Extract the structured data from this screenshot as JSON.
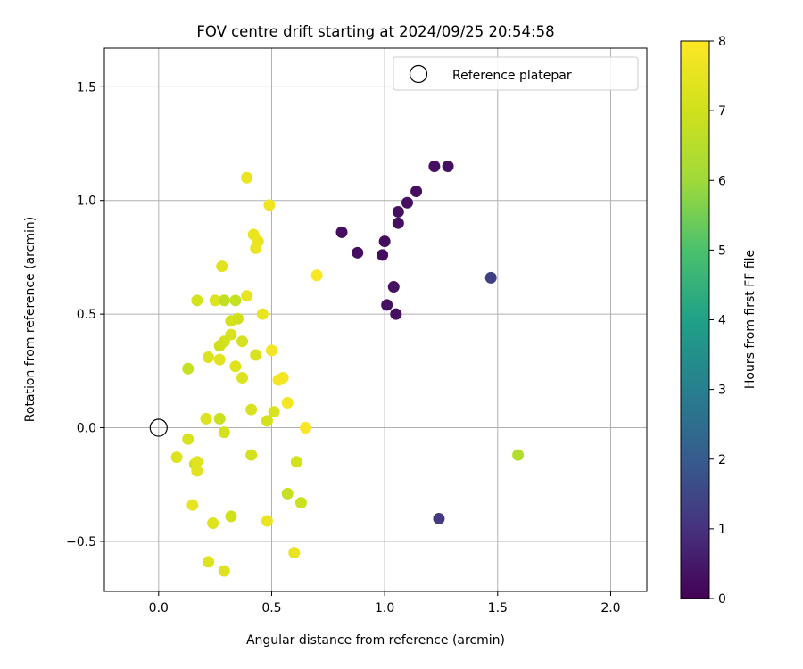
{
  "chart_data": {
    "type": "scatter",
    "title": "FOV centre drift starting at 2024/09/25 20:54:58",
    "xlabel": "Angular distance from reference (arcmin)",
    "ylabel": "Rotation from reference (arcmin)",
    "xlim": [
      -0.24,
      2.16
    ],
    "ylim": [
      -0.72,
      1.67
    ],
    "xticks": [
      0.0,
      0.5,
      1.0,
      1.5,
      2.0
    ],
    "xtick_labels": [
      "0.0",
      "0.5",
      "1.0",
      "1.5",
      "2.0"
    ],
    "yticks": [
      -0.5,
      0.0,
      0.5,
      1.0,
      1.5
    ],
    "ytick_labels": [
      "−0.5",
      "0.0",
      "0.5",
      "1.0",
      "1.5"
    ],
    "grid": true,
    "legend": {
      "placement": "top-right",
      "entries": [
        "Reference platepar"
      ]
    },
    "reference_point": {
      "x": 0.0,
      "y": 0.0
    },
    "colorbar": {
      "label": "Hours from first FF file",
      "range": [
        0,
        8
      ],
      "ticks": [
        0,
        1,
        2,
        3,
        4,
        5,
        6,
        7,
        8
      ],
      "tick_labels": [
        "0",
        "1",
        "2",
        "3",
        "4",
        "5",
        "6",
        "7",
        "8"
      ],
      "colormap": "viridis"
    },
    "points": [
      {
        "x": 0.81,
        "y": 0.86,
        "h": 0.25
      },
      {
        "x": 0.88,
        "y": 0.77,
        "h": 0.25
      },
      {
        "x": 0.99,
        "y": 0.76,
        "h": 0.25
      },
      {
        "x": 1.0,
        "y": 0.82,
        "h": 0.25
      },
      {
        "x": 1.06,
        "y": 0.9,
        "h": 0.3
      },
      {
        "x": 1.06,
        "y": 0.95,
        "h": 0.3
      },
      {
        "x": 1.1,
        "y": 0.99,
        "h": 0.3
      },
      {
        "x": 1.14,
        "y": 1.04,
        "h": 0.3
      },
      {
        "x": 1.22,
        "y": 1.15,
        "h": 0.3
      },
      {
        "x": 1.28,
        "y": 1.15,
        "h": 0.3
      },
      {
        "x": 1.04,
        "y": 0.62,
        "h": 0.3
      },
      {
        "x": 1.01,
        "y": 0.54,
        "h": 0.3
      },
      {
        "x": 1.05,
        "y": 0.5,
        "h": 0.3
      },
      {
        "x": 1.47,
        "y": 0.66,
        "h": 1.3
      },
      {
        "x": 1.24,
        "y": -0.4,
        "h": 1.2
      },
      {
        "x": 1.59,
        "y": -0.12,
        "h": 6.4
      },
      {
        "x": 0.39,
        "y": 1.1,
        "h": 7.6
      },
      {
        "x": 0.49,
        "y": 0.98,
        "h": 7.7
      },
      {
        "x": 0.42,
        "y": 0.85,
        "h": 7.6
      },
      {
        "x": 0.44,
        "y": 0.82,
        "h": 7.6
      },
      {
        "x": 0.43,
        "y": 0.79,
        "h": 7.6
      },
      {
        "x": 0.28,
        "y": 0.71,
        "h": 7.4
      },
      {
        "x": 0.7,
        "y": 0.67,
        "h": 7.9
      },
      {
        "x": 0.17,
        "y": 0.56,
        "h": 7.1
      },
      {
        "x": 0.25,
        "y": 0.56,
        "h": 7.3
      },
      {
        "x": 0.29,
        "y": 0.56,
        "h": 6.7
      },
      {
        "x": 0.34,
        "y": 0.56,
        "h": 6.8
      },
      {
        "x": 0.39,
        "y": 0.58,
        "h": 7.5
      },
      {
        "x": 0.46,
        "y": 0.5,
        "h": 7.6
      },
      {
        "x": 0.32,
        "y": 0.47,
        "h": 7.1
      },
      {
        "x": 0.35,
        "y": 0.48,
        "h": 7.0
      },
      {
        "x": 0.32,
        "y": 0.41,
        "h": 7.2
      },
      {
        "x": 0.37,
        "y": 0.38,
        "h": 7.1
      },
      {
        "x": 0.29,
        "y": 0.38,
        "h": 7.1
      },
      {
        "x": 0.27,
        "y": 0.36,
        "h": 7.0
      },
      {
        "x": 0.22,
        "y": 0.31,
        "h": 7.3
      },
      {
        "x": 0.27,
        "y": 0.3,
        "h": 7.4
      },
      {
        "x": 0.43,
        "y": 0.32,
        "h": 7.2
      },
      {
        "x": 0.5,
        "y": 0.34,
        "h": 7.8
      },
      {
        "x": 0.34,
        "y": 0.27,
        "h": 7.3
      },
      {
        "x": 0.13,
        "y": 0.26,
        "h": 6.8
      },
      {
        "x": 0.37,
        "y": 0.22,
        "h": 7.3
      },
      {
        "x": 0.53,
        "y": 0.21,
        "h": 7.8
      },
      {
        "x": 0.55,
        "y": 0.22,
        "h": 7.8
      },
      {
        "x": 0.57,
        "y": 0.11,
        "h": 7.8
      },
      {
        "x": 0.41,
        "y": 0.08,
        "h": 7.2
      },
      {
        "x": 0.51,
        "y": 0.07,
        "h": 7.2
      },
      {
        "x": 0.21,
        "y": 0.04,
        "h": 7.3
      },
      {
        "x": 0.27,
        "y": 0.04,
        "h": 6.9
      },
      {
        "x": 0.48,
        "y": 0.03,
        "h": 7.1
      },
      {
        "x": 0.65,
        "y": 0.0,
        "h": 7.9
      },
      {
        "x": 0.29,
        "y": -0.02,
        "h": 7.1
      },
      {
        "x": 0.13,
        "y": -0.05,
        "h": 7.2
      },
      {
        "x": 0.08,
        "y": -0.13,
        "h": 7.3
      },
      {
        "x": 0.16,
        "y": -0.16,
        "h": 7.0
      },
      {
        "x": 0.17,
        "y": -0.15,
        "h": 7.4
      },
      {
        "x": 0.17,
        "y": -0.19,
        "h": 7.4
      },
      {
        "x": 0.41,
        "y": -0.12,
        "h": 7.1
      },
      {
        "x": 0.61,
        "y": -0.15,
        "h": 7.1
      },
      {
        "x": 0.57,
        "y": -0.29,
        "h": 6.8
      },
      {
        "x": 0.63,
        "y": -0.33,
        "h": 6.9
      },
      {
        "x": 0.15,
        "y": -0.34,
        "h": 7.5
      },
      {
        "x": 0.32,
        "y": -0.39,
        "h": 7.0
      },
      {
        "x": 0.24,
        "y": -0.42,
        "h": 7.3
      },
      {
        "x": 0.48,
        "y": -0.41,
        "h": 7.6
      },
      {
        "x": 0.22,
        "y": -0.59,
        "h": 7.3
      },
      {
        "x": 0.29,
        "y": -0.63,
        "h": 7.3
      },
      {
        "x": 0.6,
        "y": -0.55,
        "h": 7.6
      }
    ]
  }
}
